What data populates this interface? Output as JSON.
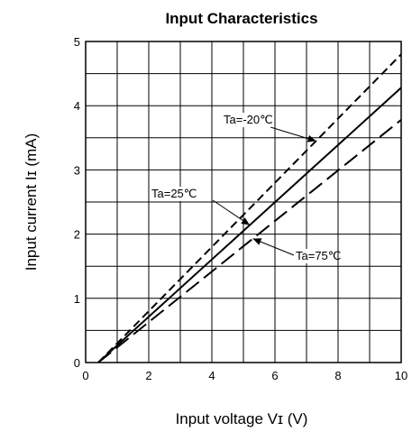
{
  "chart_data": {
    "type": "line",
    "title": "Input Characteristics",
    "xlabel": "Input voltage  Vɪ  (V)",
    "ylabel": "Input current  Iɪ  (mA)",
    "xlim": [
      0,
      10
    ],
    "ylim": [
      0,
      5
    ],
    "x_ticks": [
      "0",
      "2",
      "4",
      "6",
      "8",
      "10"
    ],
    "y_ticks": [
      "0",
      "1",
      "2",
      "3",
      "4",
      "5"
    ],
    "grid": true,
    "series": [
      {
        "name": "Ta=-20℃",
        "style": "short-dash",
        "x": [
          0.4,
          10
        ],
        "y": [
          0,
          4.8
        ]
      },
      {
        "name": "Ta=25℃",
        "style": "solid",
        "x": [
          0.4,
          10
        ],
        "y": [
          0,
          4.28
        ]
      },
      {
        "name": "Ta=75℃",
        "style": "long-dash",
        "x": [
          0.4,
          10
        ],
        "y": [
          0,
          3.78
        ]
      }
    ],
    "annotations": [
      {
        "text": "Ta=-20℃",
        "series": 0,
        "x": 7.3,
        "y": 3.55
      },
      {
        "text": "Ta=25℃",
        "series": 1,
        "x": 5.2,
        "y": 2.2
      },
      {
        "text": "Ta=75℃",
        "series": 2,
        "x": 5.3,
        "y": 1.95
      }
    ]
  }
}
